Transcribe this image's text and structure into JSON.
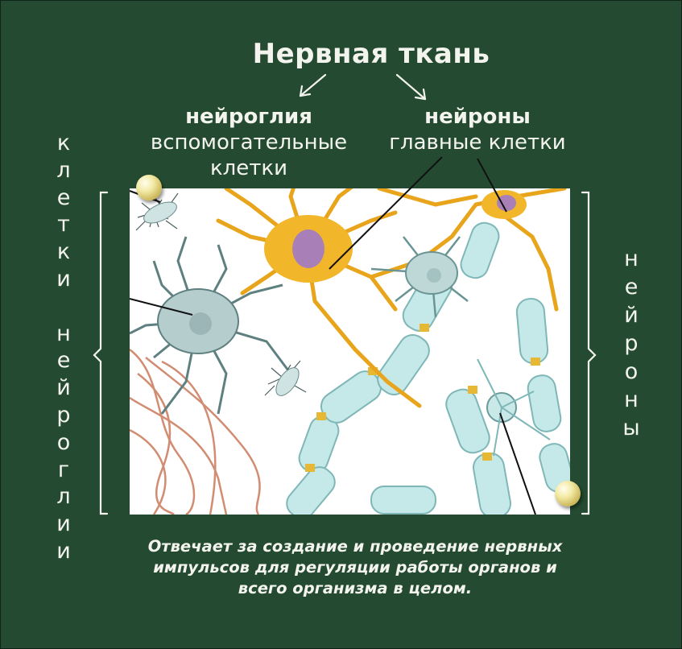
{
  "title": "Нервная ткань",
  "glia_label": {
    "line1": "нейроглия",
    "line2": "вспомогательные",
    "line3": "клетки"
  },
  "neuron_label": {
    "line1": "нейроны",
    "line2": "главные клетки"
  },
  "left_vertical": "клетки нейроглии",
  "right_vertical": "нейроны",
  "description": {
    "line1": "Отвечает за создание и проведение нервных",
    "line2": "импульсов для регуляции работы органов и",
    "line3": "всего организма в целом."
  },
  "colors": {
    "board": "#244b31",
    "chalk": "#f4f4ee",
    "neuron": "#f0b323",
    "glia": "#b8cfd0",
    "myelin": "#bfe6e6",
    "nucleus": "#a97fb8"
  }
}
